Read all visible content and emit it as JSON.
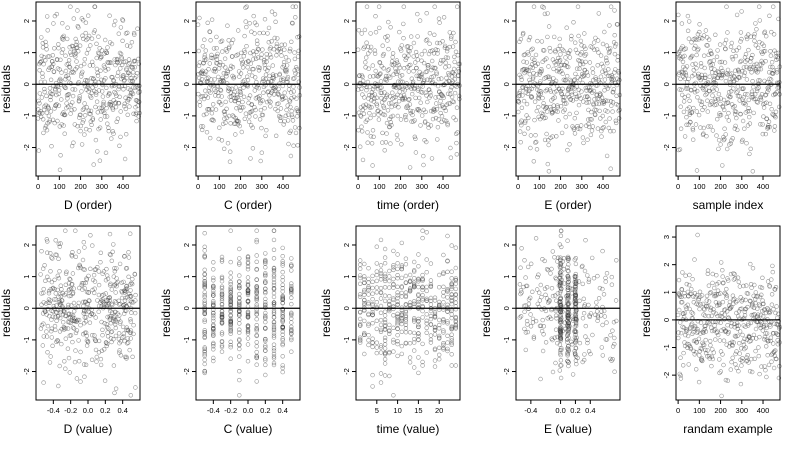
{
  "chart_data": [
    {
      "type": "scatter",
      "xlabel": "D (order)",
      "ylabel": "residuals",
      "xlim": [
        -10,
        480
      ],
      "ylim": [
        -2.9,
        2.6
      ],
      "xticks": [
        0,
        100,
        200,
        300,
        400
      ],
      "yticks": [
        -2,
        -1,
        0,
        1,
        2
      ],
      "x_kind": "index",
      "n": 480,
      "seed": 11,
      "hline": 0
    },
    {
      "type": "scatter",
      "xlabel": "C (order)",
      "ylabel": "residuals",
      "xlim": [
        -10,
        480
      ],
      "ylim": [
        -2.9,
        2.6
      ],
      "xticks": [
        0,
        100,
        200,
        300,
        400
      ],
      "yticks": [
        -2,
        -1,
        0,
        1,
        2
      ],
      "x_kind": "index",
      "n": 480,
      "seed": 23,
      "hline": 0
    },
    {
      "type": "scatter",
      "xlabel": "time (order)",
      "ylabel": "residuals",
      "xlim": [
        -10,
        480
      ],
      "ylim": [
        -2.9,
        2.6
      ],
      "xticks": [
        0,
        100,
        200,
        300,
        400
      ],
      "yticks": [
        -2,
        -1,
        0,
        1,
        2
      ],
      "x_kind": "index",
      "n": 480,
      "seed": 37,
      "hline": 0
    },
    {
      "type": "scatter",
      "xlabel": "E (order)",
      "ylabel": "residuals",
      "xlim": [
        -10,
        480
      ],
      "ylim": [
        -2.9,
        2.6
      ],
      "xticks": [
        0,
        100,
        200,
        300,
        400
      ],
      "yticks": [
        -2,
        -1,
        0,
        1,
        2
      ],
      "x_kind": "index",
      "n": 480,
      "seed": 41,
      "hline": 0
    },
    {
      "type": "scatter",
      "xlabel": "sample index",
      "ylabel": "residuals",
      "xlim": [
        -10,
        480
      ],
      "ylim": [
        -2.9,
        2.6
      ],
      "xticks": [
        0,
        100,
        200,
        300,
        400
      ],
      "yticks": [
        -2,
        -1,
        0,
        1,
        2
      ],
      "x_kind": "index",
      "n": 480,
      "seed": 53,
      "hline": 0
    },
    {
      "type": "scatter",
      "xlabel": "D (value)",
      "ylabel": "residuals",
      "xlim": [
        -0.6,
        0.6
      ],
      "ylim": [
        -2.9,
        2.6
      ],
      "xticks": [
        -0.4,
        -0.2,
        0.0,
        0.2,
        0.4
      ],
      "xtick_labels": [
        "-0.4",
        "-0.2",
        "0.0",
        "0.2",
        "0.4"
      ],
      "yticks": [
        -2,
        -1,
        0,
        1,
        2
      ],
      "x_kind": "uniform",
      "x_range": [
        -0.55,
        0.55
      ],
      "n": 480,
      "seed": 61,
      "hline": 0
    },
    {
      "type": "scatter",
      "xlabel": "C (value)",
      "ylabel": "residuals",
      "xlim": [
        -0.6,
        0.6
      ],
      "ylim": [
        -2.9,
        2.6
      ],
      "xticks": [
        -0.4,
        -0.2,
        0.0,
        0.2,
        0.4
      ],
      "xtick_labels": [
        "-0.4",
        "-0.2",
        "0.0",
        "0.2",
        "0.4"
      ],
      "yticks": [
        -2,
        -1,
        0,
        1,
        2
      ],
      "x_kind": "discrete",
      "x_values": [
        -0.5,
        -0.4,
        -0.3,
        -0.2,
        -0.1,
        0.0,
        0.1,
        0.2,
        0.3,
        0.4,
        0.5
      ],
      "n": 480,
      "seed": 71,
      "hline": 0
    },
    {
      "type": "scatter",
      "xlabel": "time (value)",
      "ylabel": "residuals",
      "xlim": [
        0,
        25
      ],
      "ylim": [
        -2.9,
        2.6
      ],
      "xticks": [
        5,
        10,
        15,
        20
      ],
      "yticks": [
        -2,
        -1,
        0,
        1,
        2
      ],
      "x_kind": "discrete",
      "x_values": [
        1,
        2,
        3,
        4,
        5,
        6,
        7,
        8,
        9,
        10,
        11,
        12,
        13,
        14,
        15,
        16,
        17,
        18,
        19,
        20,
        21,
        22,
        23,
        24
      ],
      "n": 480,
      "seed": 83,
      "hline": 0
    },
    {
      "type": "scatter",
      "xlabel": "E (value)",
      "ylabel": "residuals",
      "xlim": [
        -0.6,
        0.8
      ],
      "ylim": [
        -2.9,
        2.6
      ],
      "xticks": [
        -0.4,
        0.0,
        0.2,
        0.4
      ],
      "xtick_labels": [
        "-0.4",
        "0.0",
        "0.2",
        "0.4"
      ],
      "yticks": [
        -2,
        -1,
        0,
        1,
        2
      ],
      "x_kind": "clustered",
      "x_clusters": [
        0.0,
        0.1,
        0.2
      ],
      "x_range": [
        -0.55,
        0.75
      ],
      "n": 480,
      "seed": 97,
      "hline": 0
    },
    {
      "type": "scatter",
      "xlabel": "randam example",
      "ylabel": "residuals",
      "xlim": [
        -10,
        480
      ],
      "ylim": [
        -2.9,
        3.4
      ],
      "xticks": [
        0,
        100,
        200,
        300,
        400
      ],
      "yticks": [
        -2,
        -1,
        0,
        1,
        2,
        3
      ],
      "x_kind": "index",
      "n": 480,
      "seed": 101,
      "hline": 0
    }
  ]
}
